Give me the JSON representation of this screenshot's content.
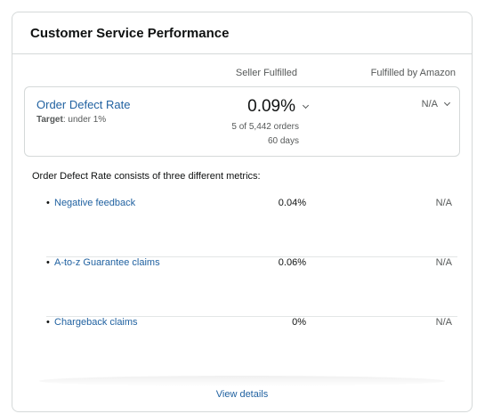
{
  "card": {
    "title": "Customer Service Performance"
  },
  "columns": {
    "seller": "Seller Fulfilled",
    "fba": "Fulfilled by Amazon"
  },
  "odr": {
    "title": "Order Defect Rate",
    "target_label": "Target",
    "target_value": ": under 1%",
    "seller_value": "0.09%",
    "seller_orders": "5 of 5,442 orders",
    "seller_period": "60 days",
    "fba_value": "N/A"
  },
  "metrics": {
    "intro": "Order Defect Rate consists of three different metrics:",
    "items": [
      {
        "bullet": "•",
        "name": "Negative feedback",
        "seller": "0.04%",
        "fba": "N/A"
      },
      {
        "bullet": "•",
        "name": "A-to-z Guarantee claims",
        "seller": "0.06%",
        "fba": "N/A"
      },
      {
        "bullet": "•",
        "name": "Chargeback claims",
        "seller": "0%",
        "fba": "N/A"
      }
    ]
  },
  "footer": {
    "view_details": "View details"
  },
  "icons": {
    "dropdown": "chevron-down-icon"
  },
  "colors": {
    "link": "#2162a1",
    "border": "#d5d9d9",
    "muted_text": "#565959"
  }
}
